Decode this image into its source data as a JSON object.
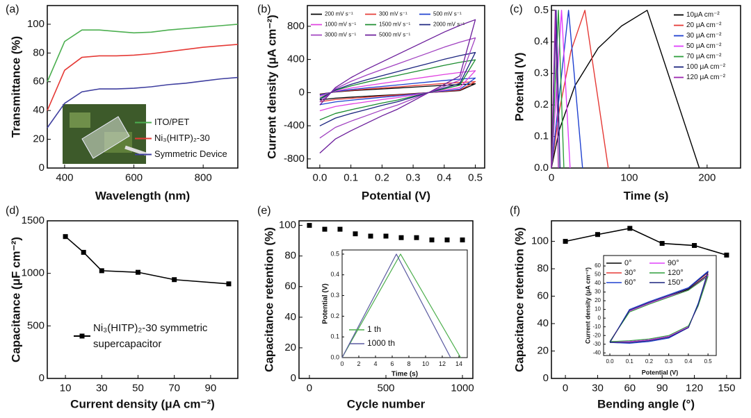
{
  "chart_data": [
    {
      "type": "line",
      "label": "(a)",
      "xlabel": "Wavelength (nm)",
      "ylabel": "Transmittance (%)",
      "x": [
        350,
        400,
        450,
        500,
        550,
        600,
        650,
        700,
        750,
        800,
        850,
        900
      ],
      "xlim": [
        350,
        900
      ],
      "xticks": [
        400,
        600,
        800
      ],
      "ylim": [
        0,
        113
      ],
      "yticks": [
        0,
        20,
        40,
        60,
        80,
        100
      ],
      "legend": "lower right",
      "series": [
        {
          "name": "ITO/PET",
          "color": "#4caf50",
          "values": [
            60,
            88,
            96,
            96,
            95,
            94,
            94.5,
            96,
            97,
            98,
            99,
            100
          ]
        },
        {
          "name": "Ni₃(HITP)₂-30",
          "color": "#e53935",
          "values": [
            40,
            68,
            77,
            78,
            78,
            78.5,
            79.5,
            81,
            82.5,
            84,
            85,
            86
          ]
        },
        {
          "name": "Symmetric Device",
          "color": "#3f3f9f",
          "values": [
            28,
            45,
            53,
            55,
            55,
            55.5,
            56.5,
            58,
            59,
            60.5,
            62,
            63
          ]
        }
      ]
    },
    {
      "type": "line",
      "label": "(b)",
      "xlabel": "Potential (V)",
      "ylabel": "Current density (μA cm⁻²)",
      "x": [
        0,
        0.05,
        0.1,
        0.15,
        0.2,
        0.25,
        0.3,
        0.35,
        0.4,
        0.45,
        0.5,
        0.45,
        0.4,
        0.35,
        0.3,
        0.25,
        0.2,
        0.15,
        0.1,
        0.05,
        0
      ],
      "xlim": [
        -0.04,
        0.53
      ],
      "xticks": [
        {
          "value": 0,
          "label": "0.0"
        },
        0.1,
        0.2,
        0.3,
        0.4,
        0.5
      ],
      "ylim": [
        -910,
        1050
      ],
      "yticks": [
        -800,
        -400,
        0,
        400,
        800
      ],
      "legend": "upper left",
      "series": [
        {
          "name": "200 mV s⁻¹",
          "color": "#000000",
          "values": [
            -18,
            7,
            22,
            34,
            44,
            55,
            66,
            77,
            88,
            97,
            106,
            24,
            12,
            0,
            -12,
            -24,
            -34,
            -44,
            -55,
            -67,
            -88
          ]
        },
        {
          "name": "300 mV s⁻¹",
          "color": "#e53935",
          "values": [
            -23,
            9,
            27,
            42,
            56,
            69,
            83,
            96,
            110,
            122,
            132,
            30,
            15,
            0,
            -15,
            -30,
            -42,
            -56,
            -69,
            -84,
            -110
          ]
        },
        {
          "name": "500 mV s⁻¹",
          "color": "#1e40d0",
          "values": [
            -30,
            12,
            36,
            56,
            74,
            92,
            110,
            128,
            146,
            162,
            176,
            40,
            20,
            0,
            -20,
            -40,
            -56,
            -74,
            -92,
            -112,
            -146
          ]
        },
        {
          "name": "1000 mV s⁻¹",
          "color": "#e040e0",
          "values": [
            -45,
            18,
            54,
            84,
            111,
            138,
            165,
            192,
            219,
            243,
            264,
            60,
            30,
            0,
            -30,
            -60,
            -84,
            -111,
            -138,
            -168,
            -219
          ]
        },
        {
          "name": "1500 mV s⁻¹",
          "color": "#1a8c2e",
          "values": [
            -68,
            27,
            81,
            126,
            167,
            207,
            248,
            288,
            329,
            365,
            396,
            90,
            45,
            0,
            -45,
            -90,
            -126,
            -167,
            -207,
            -252,
            -329
          ]
        },
        {
          "name": "2000 mV s⁻¹",
          "color": "#1a237e",
          "values": [
            -83,
            33,
            99,
            154,
            204,
            253,
            303,
            352,
            402,
            446,
            484,
            110,
            55,
            0,
            -55,
            -110,
            -154,
            -204,
            -253,
            -308,
            -402
          ]
        },
        {
          "name": "3000 mV s⁻¹",
          "color": "#a040c0",
          "values": [
            -113,
            45,
            135,
            210,
            278,
            345,
            413,
            480,
            548,
            608,
            660,
            150,
            75,
            0,
            -75,
            -150,
            -210,
            -278,
            -345,
            -420,
            -548
          ]
        },
        {
          "name": "5000 mV s⁻¹",
          "color": "#6a1b9a",
          "values": [
            -150,
            60,
            180,
            280,
            370,
            460,
            550,
            640,
            730,
            810,
            880,
            200,
            100,
            0,
            -100,
            -200,
            -280,
            -370,
            -460,
            -560,
            -730
          ]
        }
      ]
    },
    {
      "type": "line",
      "label": "(c)",
      "xlabel": "Time (s)",
      "ylabel": "Potential (V)",
      "xlim": [
        0,
        243
      ],
      "xticks": [
        0,
        100,
        200
      ],
      "ylim": [
        0,
        0.515
      ],
      "yticks": [
        {
          "value": 0,
          "label": "0.0"
        },
        0.1,
        0.2,
        0.3,
        0.4,
        0.5
      ],
      "legend": "upper right",
      "series": [
        {
          "name": "10μA cm⁻²",
          "color": "#000000",
          "x": [
            0,
            10,
            30,
            60,
            90,
            123,
            190
          ],
          "values": [
            0,
            0.12,
            0.26,
            0.38,
            0.45,
            0.5,
            0
          ]
        },
        {
          "name": "20 μA cm⁻²",
          "color": "#e53935",
          "x": [
            0,
            10,
            25,
            43,
            73
          ],
          "values": [
            0,
            0.18,
            0.37,
            0.5,
            0
          ]
        },
        {
          "name": "30 μA cm⁻²",
          "color": "#1e40d0",
          "x": [
            0,
            22,
            40
          ],
          "values": [
            0,
            0.5,
            0
          ]
        },
        {
          "name": "50 μA cm⁻²",
          "color": "#e040fb",
          "x": [
            0,
            13,
            24
          ],
          "values": [
            0,
            0.5,
            0
          ]
        },
        {
          "name": "70 μA cm⁻²",
          "color": "#2e9e3c",
          "x": [
            0,
            9,
            16
          ],
          "values": [
            0,
            0.5,
            0
          ]
        },
        {
          "name": "100 μA cm⁻²",
          "color": "#1a237e",
          "x": [
            0,
            6,
            11
          ],
          "values": [
            0,
            0.5,
            0
          ]
        },
        {
          "name": "120 μA cm⁻²",
          "color": "#9c27b0",
          "x": [
            0,
            5,
            9
          ],
          "values": [
            0,
            0.5,
            0
          ]
        }
      ]
    },
    {
      "type": "line",
      "markers": true,
      "label": "(d)",
      "xlabel": "Current density (μA cm⁻²)",
      "ylabel": "Capacitance (μF cm⁻²)",
      "x": [
        10,
        20,
        30,
        50,
        70,
        100
      ],
      "xlim": [
        0,
        105
      ],
      "xticks": [
        10,
        30,
        50,
        70,
        90
      ],
      "ylim": [
        0,
        1500
      ],
      "yticks": [
        0,
        500,
        1000,
        1500
      ],
      "legend": "lower left",
      "series": [
        {
          "name": "Ni₃(HITP)₂-30 symmetric supercapacitor",
          "color": "#000000",
          "values": [
            1350,
            1200,
            1025,
            1010,
            940,
            900
          ]
        }
      ]
    },
    {
      "type": "scatter",
      "label": "(e)",
      "xlabel": "Cycle number",
      "ylabel": "Capacitance retention (%)",
      "x": [
        0,
        100,
        200,
        300,
        400,
        500,
        600,
        700,
        800,
        900,
        1000
      ],
      "xlim": [
        -68,
        1068
      ],
      "xticks": [
        0,
        500,
        1000
      ],
      "ylim": [
        0,
        103
      ],
      "yticks": [
        0,
        20,
        40,
        60,
        80,
        100
      ],
      "series": [
        {
          "color": "#000000",
          "values": [
            100,
            97.5,
            97.5,
            94.5,
            93,
            93,
            92,
            92,
            90.5,
            90.5,
            90.5
          ]
        }
      ]
    },
    {
      "type": "line",
      "markers": true,
      "label": "(f)",
      "xlabel": "Bending angle (°)",
      "ylabel": "Capacitance retention (%)",
      "x": [
        0,
        30,
        60,
        90,
        120,
        150
      ],
      "xlim": [
        -13,
        163
      ],
      "xticks": [
        0,
        30,
        60,
        90,
        120,
        150
      ],
      "ylim": [
        0,
        115
      ],
      "yticks": [
        0,
        20,
        40,
        60,
        80,
        100
      ],
      "series": [
        {
          "color": "#000000",
          "values": [
            100,
            105,
            109.5,
            98.5,
            97,
            90
          ]
        }
      ]
    },
    {
      "type": "line",
      "xlabel": "Time (s)",
      "ylabel": "Potential (V)",
      "xlim": [
        0,
        15
      ],
      "xticks": [
        0,
        2,
        4,
        6,
        8,
        10,
        12,
        14
      ],
      "ylim": [
        0,
        0.52
      ],
      "yticks": [
        {
          "value": 0,
          "label": "0.0"
        },
        0.1,
        0.2,
        0.3,
        0.4,
        0.5
      ],
      "legend": "lower left",
      "series": [
        {
          "name": "1 th",
          "color": "#4cae4c",
          "x": [
            0,
            7,
            14.2
          ],
          "values": [
            0,
            0.5,
            0
          ]
        },
        {
          "name": "1000 th",
          "color": "#5a5aa0",
          "x": [
            0,
            6.5,
            13
          ],
          "values": [
            0,
            0.5,
            0
          ]
        }
      ]
    },
    {
      "type": "line",
      "xlabel": "Potential (V)",
      "ylabel": "Current density (μA cm⁻²)",
      "x": [
        0,
        0.1,
        0.2,
        0.3,
        0.4,
        0.5,
        0.45,
        0.4,
        0.3,
        0.2,
        0.1,
        0
      ],
      "xlim": [
        -0.032,
        0.542
      ],
      "xticks": [
        {
          "value": 0,
          "label": "0.0"
        },
        0.1,
        0.2,
        0.3,
        0.4,
        0.5
      ],
      "ylim": [
        -43,
        72
      ],
      "yticks": [
        -40,
        -30,
        -20,
        -10,
        0,
        10,
        20,
        30,
        40,
        50,
        60
      ],
      "legend": "upper left",
      "series": [
        {
          "name": "0°",
          "color": "#000000",
          "values": [
            -27,
            8,
            17,
            25,
            33,
            50,
            15,
            -10,
            -21,
            -25,
            -27,
            -27
          ]
        },
        {
          "name": "30°",
          "color": "#e53935",
          "values": [
            -28,
            9,
            18,
            26,
            34,
            52,
            16,
            -11,
            -22,
            -26,
            -28,
            -28
          ]
        },
        {
          "name": "60°",
          "color": "#1e40d0",
          "values": [
            -28,
            10,
            19,
            27,
            35,
            54,
            17,
            -11,
            -23,
            -27,
            -29,
            -28
          ]
        },
        {
          "name": "90°",
          "color": "#e040fb",
          "values": [
            -27,
            8,
            17,
            25,
            32,
            49,
            14,
            -10,
            -21,
            -25,
            -27,
            -27
          ]
        },
        {
          "name": "120°",
          "color": "#2e9e3c",
          "values": [
            -27,
            7,
            16,
            24,
            32,
            48,
            14,
            -9,
            -20,
            -24,
            -26,
            -27
          ]
        },
        {
          "name": "150°",
          "color": "#1a237e",
          "values": [
            -28,
            9,
            18,
            26,
            34,
            53,
            16,
            -11,
            -22,
            -26,
            -28,
            -28
          ]
        }
      ]
    }
  ]
}
